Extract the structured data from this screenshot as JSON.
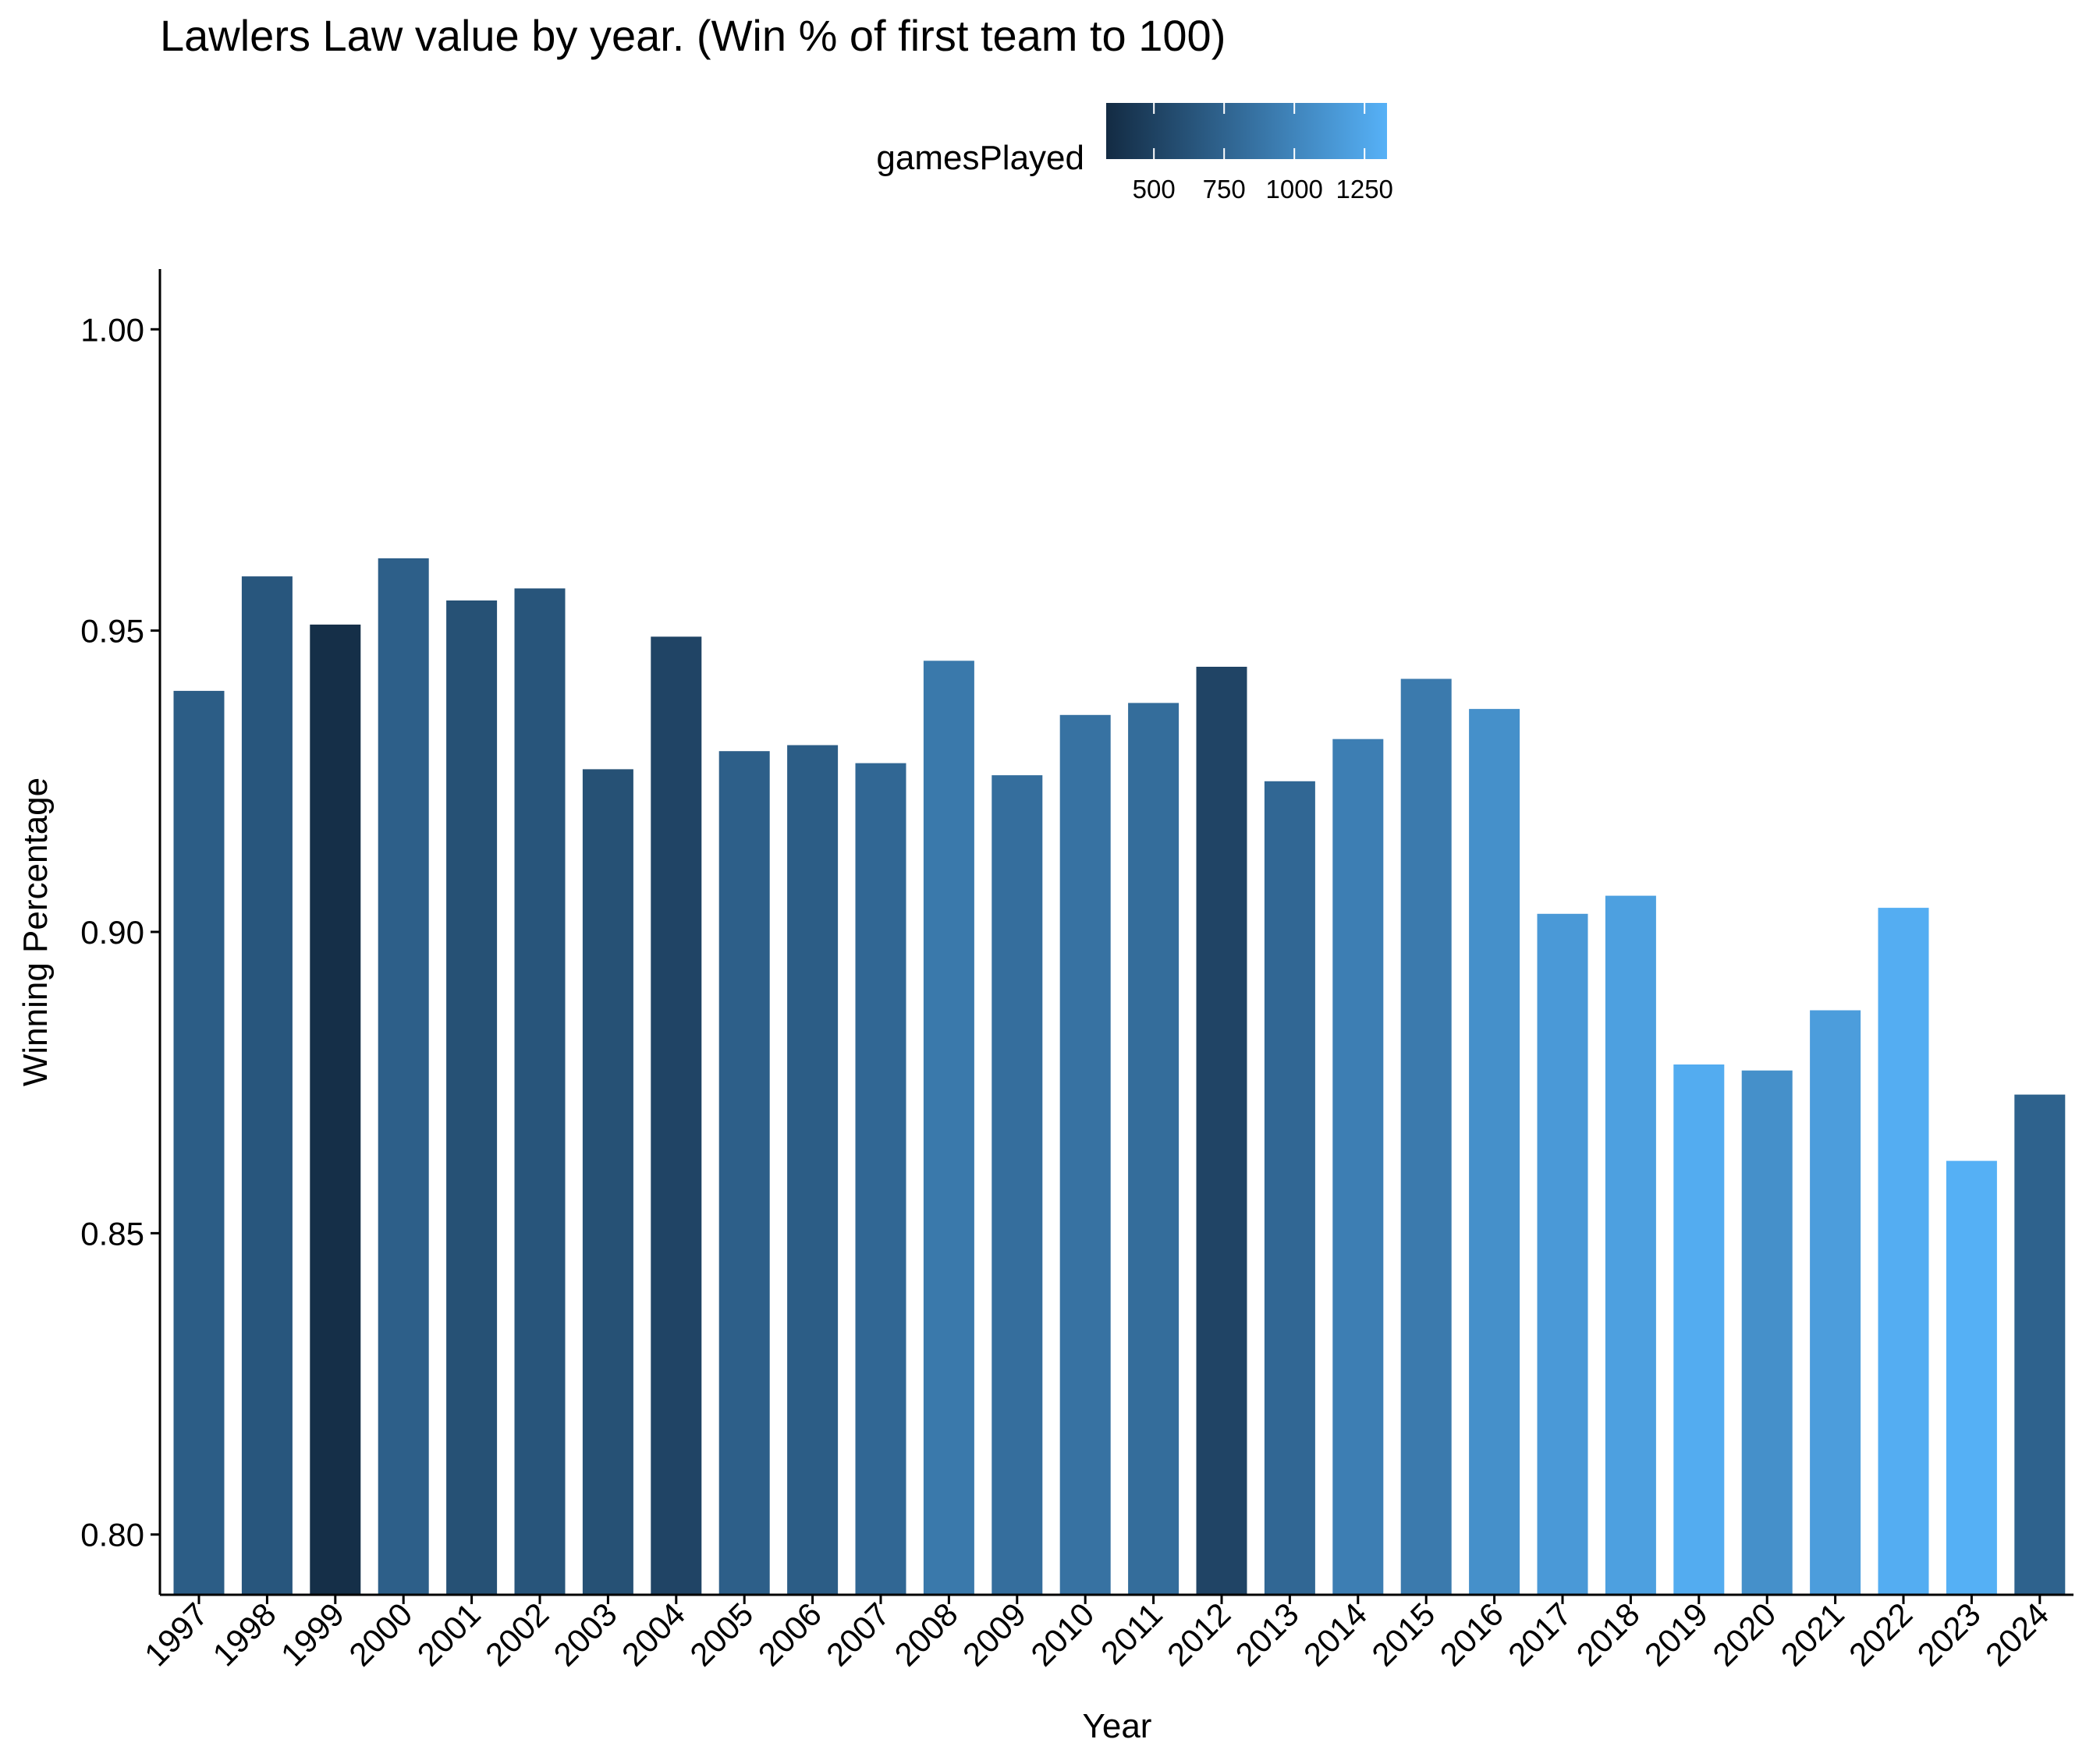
{
  "title": "Lawlers Law value by year. (Win % of first team to 100)",
  "chart_data": {
    "type": "bar",
    "title": "Lawlers Law value by year. (Win % of first team to 100)",
    "xlabel": "Year",
    "ylabel": "Winning Percentage",
    "ylim": [
      0.79,
      1.01
    ],
    "yticks": [
      0.8,
      0.85,
      0.9,
      0.95,
      1.0
    ],
    "ytick_labels": [
      "0.80",
      "0.85",
      "0.90",
      "0.95",
      "1.00"
    ],
    "grid": false,
    "categories": [
      "1997",
      "1998",
      "1999",
      "2000",
      "2001",
      "2002",
      "2003",
      "2004",
      "2005",
      "2006",
      "2007",
      "2008",
      "2009",
      "2010",
      "2011",
      "2012",
      "2013",
      "2014",
      "2015",
      "2016",
      "2017",
      "2018",
      "2019",
      "2020",
      "2021",
      "2022",
      "2023",
      "2024"
    ],
    "values": [
      0.94,
      0.959,
      0.951,
      0.962,
      0.955,
      0.957,
      0.927,
      0.949,
      0.93,
      0.931,
      0.928,
      0.945,
      0.926,
      0.936,
      0.938,
      0.944,
      0.925,
      0.932,
      0.942,
      0.937,
      0.903,
      0.906,
      0.878,
      0.877,
      0.887,
      0.904,
      0.862,
      0.873
    ],
    "fill_variable": "gamesPlayed",
    "fill_values": [
      700,
      650,
      360,
      720,
      610,
      640,
      610,
      520,
      720,
      700,
      780,
      910,
      830,
      860,
      820,
      520,
      780,
      950,
      920,
      1080,
      1150,
      1200,
      1290,
      1080,
      1180,
      1300,
      1320,
      740
    ],
    "legend": {
      "title": "gamesPlayed",
      "position": "top",
      "range": [
        330,
        1330
      ],
      "ticks": [
        500,
        750,
        1000,
        1250
      ],
      "tick_labels": [
        "500",
        "750",
        "1000",
        "1250"
      ],
      "color_low": "#132B43",
      "color_high": "#56B1F7"
    }
  }
}
